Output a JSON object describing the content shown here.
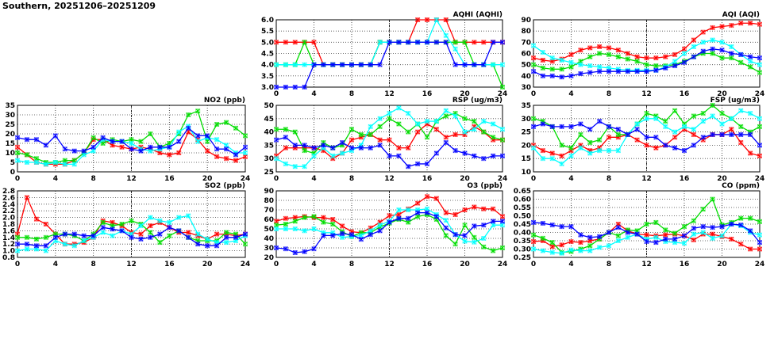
{
  "title": "Southern, 20251206–20251209",
  "colors": {
    "red": "#ff0000",
    "green": "#00dd00",
    "cyan": "#00ffff",
    "blue": "#0000ff"
  },
  "chart_data": [
    {
      "type": "line",
      "title": "AQHI (AQHI)",
      "xticks": [
        "0",
        "4",
        "8",
        "12",
        "16",
        "20",
        "24"
      ],
      "xlim": [
        0,
        24
      ],
      "ylim": [
        3,
        6
      ],
      "yticks": [
        "3.0",
        "3.5",
        "4.0",
        "4.5",
        "5.0",
        "5.5",
        "6.0"
      ],
      "grid": true,
      "series": [
        {
          "name": "red",
          "values": [
            5,
            5,
            5,
            5,
            5,
            4,
            4,
            4,
            4,
            4,
            4,
            5,
            5,
            5,
            5,
            6,
            6,
            6,
            6,
            5,
            5,
            5,
            5,
            5,
            5
          ]
        },
        {
          "name": "green",
          "values": [
            4,
            4,
            4,
            5,
            4,
            4,
            4,
            4,
            4,
            4,
            4,
            5,
            5,
            5,
            5,
            5,
            5,
            5,
            5,
            5,
            5,
            4,
            4,
            4,
            3
          ]
        },
        {
          "name": "cyan",
          "values": [
            4,
            4,
            4,
            4,
            4,
            4,
            4,
            4,
            4,
            4,
            4,
            5,
            5,
            5,
            5,
            5,
            5,
            6,
            5.3,
            4.7,
            4,
            4,
            4,
            4,
            4
          ]
        },
        {
          "name": "blue",
          "values": [
            3,
            3,
            3,
            3,
            4,
            4,
            4,
            4,
            4,
            4,
            4,
            4,
            5,
            5,
            5,
            5,
            5,
            5,
            5,
            4,
            4,
            4,
            4,
            5,
            5
          ]
        }
      ]
    },
    {
      "type": "line",
      "title": "AQI (AQI)",
      "xticks": [
        "0",
        "4",
        "8",
        "12",
        "16",
        "20",
        "24"
      ],
      "xlim": [
        0,
        24
      ],
      "ylim": [
        30,
        90
      ],
      "yticks": [
        "30",
        "40",
        "50",
        "60",
        "70",
        "80",
        "90"
      ],
      "grid": true,
      "series": [
        {
          "name": "red",
          "values": [
            56,
            54,
            53,
            55,
            59,
            63,
            65,
            66,
            65,
            63,
            60,
            57,
            56,
            56,
            57,
            59,
            64,
            72,
            79,
            83,
            84,
            85,
            87,
            87,
            86
          ]
        },
        {
          "name": "green",
          "values": [
            50,
            47,
            46,
            46,
            48,
            53,
            57,
            60,
            59,
            57,
            55,
            53,
            50,
            49,
            49,
            50,
            53,
            57,
            60,
            60,
            56,
            56,
            52,
            48,
            43
          ]
        },
        {
          "name": "cyan",
          "values": [
            67,
            61,
            56,
            54,
            52,
            50,
            49,
            48,
            47,
            46,
            45,
            45,
            45,
            45,
            48,
            53,
            60,
            66,
            70,
            72,
            70,
            66,
            59,
            53,
            50
          ]
        },
        {
          "name": "blue",
          "values": [
            44,
            40,
            40,
            39,
            40,
            42,
            43,
            44,
            44,
            44,
            44,
            44,
            44,
            45,
            47,
            49,
            52,
            57,
            62,
            64,
            63,
            60,
            59,
            57,
            56
          ]
        }
      ]
    },
    {
      "type": "line",
      "title": "NO2 (ppb)",
      "xticks": [
        "0",
        "4",
        "8",
        "12",
        "16",
        "20",
        "24"
      ],
      "xlim": [
        0,
        24
      ],
      "ylim": [
        0,
        35
      ],
      "yticks": [
        "0",
        "5",
        "10",
        "15",
        "20",
        "25",
        "30",
        "35"
      ],
      "grid": true,
      "series": [
        {
          "name": "red",
          "values": [
            13,
            9,
            5,
            4,
            4,
            4,
            6,
            10,
            17,
            17,
            14,
            13,
            12,
            13,
            12,
            10,
            9,
            10,
            21,
            17,
            11,
            8,
            7,
            6,
            8
          ]
        },
        {
          "name": "green",
          "values": [
            10,
            9,
            7,
            5,
            5,
            6,
            6,
            10,
            18,
            15,
            17,
            16,
            17,
            16,
            20,
            13,
            15,
            20,
            30,
            32,
            16,
            25,
            26,
            23,
            19
          ]
        },
        {
          "name": "cyan",
          "values": [
            6,
            5,
            5,
            4,
            5,
            4,
            4,
            9,
            11,
            17,
            16,
            16,
            15,
            12,
            11,
            12,
            13,
            21,
            24,
            16,
            18,
            17,
            14,
            10,
            10
          ]
        },
        {
          "name": "blue",
          "values": [
            18,
            17,
            17,
            14,
            19,
            12,
            11,
            11,
            13,
            18,
            16,
            16,
            12,
            11,
            13,
            13,
            13,
            16,
            23,
            19,
            19,
            12,
            12,
            9,
            13
          ]
        }
      ]
    },
    {
      "type": "line",
      "title": "RSP (ug/m3)",
      "xticks": [
        "0",
        "4",
        "8",
        "12",
        "16",
        "20",
        "24"
      ],
      "xlim": [
        0,
        24
      ],
      "ylim": [
        25,
        50
      ],
      "yticks": [
        "25",
        "30",
        "35",
        "40",
        "45",
        "50"
      ],
      "grid": true,
      "series": [
        {
          "name": "red",
          "values": [
            31,
            34,
            34,
            34,
            34,
            33,
            30,
            32,
            37,
            38,
            39,
            37,
            37,
            34,
            34,
            40,
            43,
            41,
            38,
            39,
            39,
            42,
            40,
            37,
            37
          ]
        },
        {
          "name": "green",
          "values": [
            41,
            41,
            40,
            33,
            32,
            36,
            34,
            35,
            41,
            39,
            39,
            42,
            45,
            43,
            40,
            43,
            38,
            44,
            46,
            47,
            45,
            44,
            40,
            38,
            37
          ]
        },
        {
          "name": "cyan",
          "values": [
            30,
            28,
            27,
            27,
            31,
            34,
            31,
            32,
            33,
            35,
            42,
            45,
            47,
            49,
            47,
            43,
            44,
            44,
            48,
            46,
            40,
            41,
            44,
            43,
            41
          ]
        },
        {
          "name": "blue",
          "values": [
            37,
            38,
            35,
            35,
            34,
            35,
            34,
            36,
            34,
            34,
            34,
            35,
            31,
            31,
            27,
            28,
            28,
            32,
            36,
            33,
            32,
            31,
            30,
            31,
            31
          ]
        }
      ]
    },
    {
      "type": "line",
      "title": "FSP (ug/m3)",
      "xticks": [
        "0",
        "4",
        "8",
        "12",
        "16",
        "20",
        "24"
      ],
      "xlim": [
        0,
        24
      ],
      "ylim": [
        10,
        35
      ],
      "yticks": [
        "10",
        "15",
        "20",
        "25",
        "30",
        "35"
      ],
      "grid": true,
      "series": [
        {
          "name": "red",
          "values": [
            20,
            18,
            17,
            16,
            18,
            20,
            18,
            19,
            23,
            23,
            24,
            22,
            20,
            19,
            20,
            23,
            26,
            24,
            22,
            24,
            24,
            26,
            21,
            17,
            16
          ]
        },
        {
          "name": "green",
          "values": [
            30,
            29,
            27,
            20,
            19,
            24,
            21,
            22,
            27,
            24,
            24,
            28,
            32,
            31,
            29,
            33,
            28,
            31,
            32,
            35,
            32,
            30,
            27,
            25,
            27
          ]
        },
        {
          "name": "cyan",
          "values": [
            19,
            15,
            15,
            13,
            16,
            19,
            17,
            18,
            18,
            18,
            24,
            28,
            30,
            30,
            27,
            25,
            27,
            26,
            29,
            31,
            28,
            30,
            33,
            32,
            30
          ]
        },
        {
          "name": "blue",
          "values": [
            27,
            28,
            27,
            27,
            27,
            28,
            26,
            29,
            27,
            26,
            24,
            26,
            23,
            23,
            20,
            19,
            18,
            20,
            23,
            24,
            24,
            24,
            24,
            24,
            20
          ]
        }
      ]
    },
    {
      "type": "line",
      "title": "SO2 (ppb)",
      "xticks": [
        "0",
        "4",
        "8",
        "12",
        "16",
        "20",
        "24"
      ],
      "xlim": [
        0,
        24
      ],
      "ylim": [
        0.8,
        2.8
      ],
      "yticks": [
        "0.8",
        "1.0",
        "1.2",
        "1.4",
        "1.6",
        "1.8",
        "2.0",
        "2.2",
        "2.4",
        "2.6",
        "2.8"
      ],
      "grid": true,
      "series": [
        {
          "name": "red",
          "values": [
            1.5,
            2.6,
            1.95,
            1.8,
            1.5,
            1.2,
            1.2,
            1.25,
            1.4,
            1.9,
            1.85,
            1.75,
            1.55,
            1.5,
            1.75,
            1.85,
            1.7,
            1.55,
            1.55,
            1.45,
            1.35,
            1.5,
            1.5,
            1.45,
            1.5
          ]
        },
        {
          "name": "green",
          "values": [
            1.4,
            1.4,
            1.35,
            1.4,
            1.5,
            1.5,
            1.45,
            1.3,
            1.5,
            1.85,
            1.75,
            1.8,
            1.9,
            1.8,
            1.55,
            1.25,
            1.45,
            1.6,
            1.4,
            1.3,
            1.3,
            1.3,
            1.55,
            1.5,
            1.2
          ]
        },
        {
          "name": "cyan",
          "values": [
            1.0,
            1.05,
            1.05,
            1.0,
            1.3,
            1.2,
            1.15,
            1.3,
            1.4,
            1.55,
            1.45,
            1.6,
            1.5,
            1.75,
            2.0,
            1.9,
            1.85,
            2.0,
            2.05,
            1.5,
            1.35,
            1.25,
            1.25,
            1.3,
            1.45
          ]
        },
        {
          "name": "blue",
          "values": [
            1.2,
            1.2,
            1.15,
            1.15,
            1.4,
            1.5,
            1.5,
            1.45,
            1.45,
            1.7,
            1.65,
            1.6,
            1.4,
            1.35,
            1.4,
            1.5,
            1.7,
            1.6,
            1.4,
            1.2,
            1.15,
            1.15,
            1.4,
            1.4,
            1.5
          ]
        }
      ]
    },
    {
      "type": "line",
      "title": "O3 (ppb)",
      "xticks": [
        "0",
        "4",
        "8",
        "12",
        "16",
        "20",
        "24"
      ],
      "xlim": [
        0,
        24
      ],
      "ylim": [
        20,
        90
      ],
      "yticks": [
        "20",
        "30",
        "40",
        "50",
        "60",
        "70",
        "80",
        "90"
      ],
      "grid": true,
      "series": [
        {
          "name": "red",
          "values": [
            58,
            61,
            62,
            63,
            62,
            62,
            60,
            53,
            47,
            46,
            51,
            57,
            64,
            65,
            71,
            77,
            84,
            82,
            67,
            65,
            70,
            73,
            71,
            71,
            63
          ]
        },
        {
          "name": "green",
          "values": [
            54,
            55,
            58,
            62,
            63,
            57,
            55,
            47,
            42,
            46,
            46,
            52,
            56,
            60,
            57,
            63,
            65,
            60,
            43,
            34,
            54,
            41,
            31,
            27,
            30
          ]
        },
        {
          "name": "cyan",
          "values": [
            50,
            50,
            50,
            48,
            50,
            46,
            46,
            41,
            42,
            43,
            48,
            54,
            58,
            70,
            70,
            70,
            71,
            65,
            59,
            44,
            37,
            36,
            40,
            54,
            54
          ]
        },
        {
          "name": "blue",
          "values": [
            30,
            29,
            25,
            26,
            29,
            43,
            43,
            45,
            44,
            39,
            44,
            48,
            57,
            61,
            61,
            67,
            67,
            63,
            51,
            44,
            43,
            53,
            54,
            58,
            58
          ]
        }
      ]
    },
    {
      "type": "line",
      "title": "CO (ppm)",
      "xticks": [
        "0",
        "4",
        "8",
        "12",
        "16",
        "20",
        "24"
      ],
      "xlim": [
        0,
        24
      ],
      "ylim": [
        0.25,
        0.65
      ],
      "yticks": [
        "0.25",
        "0.30",
        "0.35",
        "0.40",
        "0.45",
        "0.50",
        "0.55",
        "0.60",
        "0.65"
      ],
      "grid": true,
      "series": [
        {
          "name": "red",
          "values": [
            0.345,
            0.35,
            0.315,
            0.325,
            0.345,
            0.34,
            0.35,
            0.36,
            0.4,
            0.45,
            0.41,
            0.39,
            0.385,
            0.38,
            0.385,
            0.39,
            0.38,
            0.355,
            0.39,
            0.39,
            0.375,
            0.36,
            0.33,
            0.3,
            0.3
          ]
        },
        {
          "name": "green",
          "values": [
            0.385,
            0.365,
            0.34,
            0.28,
            0.285,
            0.3,
            0.32,
            0.36,
            0.4,
            0.38,
            0.415,
            0.41,
            0.45,
            0.46,
            0.415,
            0.395,
            0.435,
            0.47,
            0.54,
            0.6,
            0.445,
            0.46,
            0.485,
            0.485,
            0.465
          ]
        },
        {
          "name": "cyan",
          "values": [
            0.3,
            0.29,
            0.28,
            0.275,
            0.295,
            0.29,
            0.29,
            0.31,
            0.32,
            0.35,
            0.37,
            0.39,
            0.36,
            0.37,
            0.345,
            0.34,
            0.335,
            0.39,
            0.4,
            0.365,
            0.38,
            0.45,
            0.44,
            0.4,
            0.385
          ]
        },
        {
          "name": "blue",
          "values": [
            0.46,
            0.455,
            0.445,
            0.435,
            0.435,
            0.385,
            0.37,
            0.375,
            0.4,
            0.43,
            0.4,
            0.39,
            0.345,
            0.34,
            0.36,
            0.36,
            0.38,
            0.425,
            0.435,
            0.43,
            0.435,
            0.45,
            0.445,
            0.41,
            0.34
          ]
        }
      ]
    }
  ]
}
